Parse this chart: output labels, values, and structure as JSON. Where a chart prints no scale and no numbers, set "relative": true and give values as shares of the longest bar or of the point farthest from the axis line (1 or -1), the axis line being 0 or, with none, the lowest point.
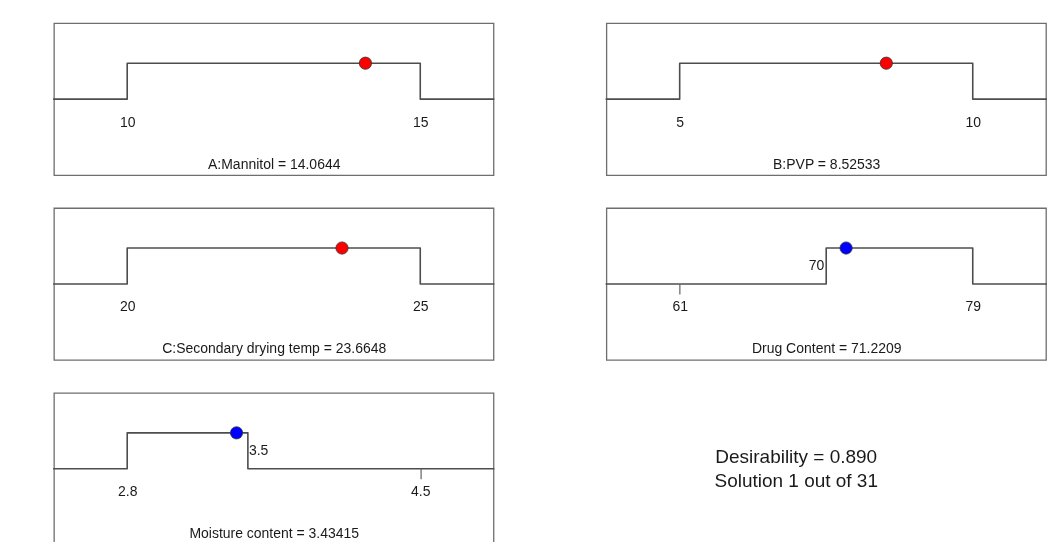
{
  "chart_data": [
    {
      "type": "line",
      "relative": true,
      "xlabel": "A:Mannitol = 14.0644",
      "xlim": [
        8.75,
        16.25
      ],
      "xticks": [
        10,
        15
      ],
      "series": [
        {
          "x": [
            8.75,
            10,
            10,
            15,
            15,
            16.25
          ],
          "values": [
            0,
            0,
            1,
            1,
            0,
            0
          ],
          "color": "#4d4d4d",
          "line_style": "solid"
        },
        {
          "type": "scatter",
          "marker": "circle",
          "x": [
            14.0644
          ],
          "values": [
            1
          ],
          "color": "#ff0000"
        }
      ]
    },
    {
      "type": "line",
      "relative": true,
      "xlabel": "B:PVP = 8.52533",
      "xlim": [
        3.75,
        11.25
      ],
      "xticks": [
        5,
        10
      ],
      "series": [
        {
          "x": [
            3.75,
            5,
            5,
            10,
            10,
            11.25
          ],
          "values": [
            0,
            0,
            1,
            1,
            0,
            0
          ],
          "color": "#4d4d4d",
          "line_style": "solid"
        },
        {
          "type": "scatter",
          "marker": "circle",
          "x": [
            8.52533
          ],
          "values": [
            1
          ],
          "color": "#ff0000"
        }
      ]
    },
    {
      "type": "line",
      "relative": true,
      "xlabel": "C:Secondary drying temp = 23.6648",
      "xlim": [
        18.75,
        26.25
      ],
      "xticks": [
        20,
        25
      ],
      "series": [
        {
          "x": [
            18.75,
            20,
            20,
            25,
            25,
            26.25
          ],
          "values": [
            0,
            0,
            1,
            1,
            0,
            0
          ],
          "color": "#4d4d4d",
          "line_style": "solid"
        },
        {
          "type": "scatter",
          "marker": "circle",
          "x": [
            23.6648
          ],
          "values": [
            1
          ],
          "color": "#ff0000"
        }
      ]
    },
    {
      "type": "line",
      "relative": true,
      "xlabel": "Drug Content = 71.2209",
      "xlim": [
        56.5,
        83.5
      ],
      "xticks": [
        61,
        79
      ],
      "series": [
        {
          "x": [
            56.5,
            70,
            70,
            79,
            79,
            83.5
          ],
          "values": [
            0,
            0,
            1,
            1,
            0,
            0
          ],
          "color": "#4d4d4d",
          "line_style": "solid"
        },
        {
          "type": "scatter",
          "marker": "circle",
          "x": [
            71.2209
          ],
          "values": [
            1
          ],
          "color": "#0000ff"
        }
      ],
      "annotations": [
        {
          "text": "70",
          "x": 70,
          "y": 0.5
        }
      ]
    },
    {
      "type": "line",
      "relative": true,
      "xlabel": "Moisture content  = 3.43415",
      "xlim": [
        2.375,
        4.925
      ],
      "xticks": [
        2.8,
        4.5
      ],
      "series": [
        {
          "x": [
            2.375,
            2.8,
            2.8,
            3.5,
            3.5,
            4.925
          ],
          "values": [
            0,
            0,
            1,
            1,
            0,
            0
          ],
          "color": "#4d4d4d",
          "line_style": "solid"
        },
        {
          "type": "scatter",
          "marker": "circle",
          "x": [
            3.43415
          ],
          "values": [
            1
          ],
          "color": "#0000ff"
        }
      ],
      "annotations": [
        {
          "text": "3.5",
          "x": 3.5,
          "y": 0.5
        }
      ]
    },
    {
      "type": "other",
      "annotations": [
        "Desirability = 0.890",
        "Solution 1 out of 31"
      ]
    }
  ]
}
